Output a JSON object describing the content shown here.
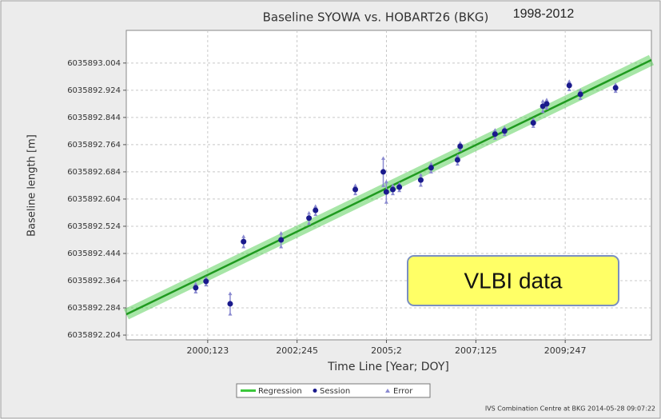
{
  "chart_data": {
    "type": "scatter",
    "title": "Baseline SYOWA vs. HOBART26 (BKG)",
    "subtitle": "1998-2012",
    "x_label": "Time Line [Year; DOY]",
    "y_label": "Baseline length [m]",
    "footer": "IVS Combination Centre at BKG 2014-05-28 09:07:22",
    "annotation": "VLBI data",
    "xlim": [
      1998.206,
      2011.926
    ],
    "ylim": [
      6035892.19,
      6035893.1
    ],
    "xticks": [
      {
        "value": 2000.333,
        "label": "2000;123"
      },
      {
        "value": 2002.668,
        "label": "2002;245"
      },
      {
        "value": 2005.003,
        "label": "2005;2"
      },
      {
        "value": 2007.34,
        "label": "2007;125"
      },
      {
        "value": 2009.674,
        "label": "2009;247"
      }
    ],
    "yticks": [
      6035892.204,
      6035892.284,
      6035892.364,
      6035892.444,
      6035892.524,
      6035892.604,
      6035892.684,
      6035892.764,
      6035892.844,
      6035892.924,
      6035893.004
    ],
    "grid": true,
    "series": [
      {
        "name": "Regression",
        "color": "#3cc83c",
        "x": [
          1998.206,
          2011.926
        ],
        "values": [
          6035892.265,
          6035893.013
        ]
      },
      {
        "name": "Session",
        "color": "#1a1a8c",
        "error_name": "Error",
        "error_color": "#8a8ad0",
        "x": [
          2000.02,
          2000.29,
          2000.92,
          2001.27,
          2002.25,
          2002.98,
          2003.15,
          2004.19,
          2004.92,
          2005.0,
          2005.17,
          2005.34,
          2005.9,
          2006.17,
          2006.86,
          2006.93,
          2007.84,
          2008.09,
          2008.84,
          2009.09,
          2009.19,
          2009.78,
          2010.07,
          2010.99
        ],
        "values": [
          6035892.343,
          6035892.362,
          6035892.296,
          6035892.479,
          6035892.484,
          6035892.548,
          6035892.571,
          6035892.632,
          6035892.684,
          6035892.625,
          6035892.632,
          6035892.639,
          6035892.66,
          6035892.696,
          6035892.719,
          6035892.759,
          6035892.795,
          6035892.804,
          6035892.828,
          6035892.877,
          6035892.884,
          6035892.938,
          6035892.912,
          6035892.931
        ],
        "errors": [
          0.012,
          0.01,
          0.03,
          0.015,
          0.02,
          0.015,
          0.012,
          0.012,
          0.04,
          0.03,
          0.012,
          0.01,
          0.015,
          0.012,
          0.012,
          0.01,
          0.012,
          0.01,
          0.01,
          0.015,
          0.012,
          0.012,
          0.012,
          0.01
        ]
      }
    ]
  }
}
